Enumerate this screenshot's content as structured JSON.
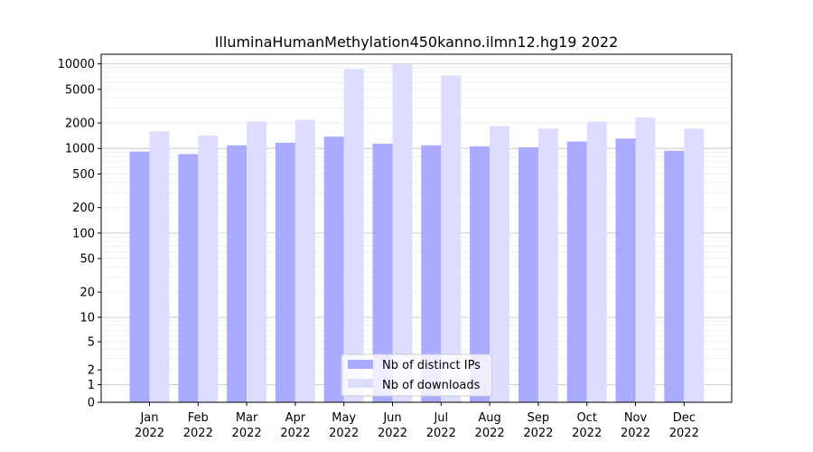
{
  "chart_data": {
    "type": "bar",
    "title": "IlluminaHumanMethylation450kanno.ilmn12.hg19 2022",
    "xlabel": "",
    "ylabel": "",
    "y_scale": "symlog",
    "ylim": [
      0,
      13000
    ],
    "y_ticks": [
      0,
      1,
      2,
      5,
      10,
      20,
      50,
      100,
      200,
      500,
      1000,
      2000,
      5000,
      10000
    ],
    "y_tick_labels": [
      "0",
      "1",
      "2",
      "5",
      "10",
      "20",
      "50",
      "100",
      "200",
      "500",
      "1000",
      "2000",
      "5000",
      "10000"
    ],
    "categories": [
      "Jan",
      "Feb",
      "Mar",
      "Apr",
      "May",
      "Jun",
      "Jul",
      "Aug",
      "Sep",
      "Oct",
      "Nov",
      "Dec"
    ],
    "category_year": "2022",
    "series": [
      {
        "name": "Nb of distinct IPs",
        "color": "#aaaaff",
        "values": [
          920,
          860,
          1090,
          1170,
          1380,
          1140,
          1090,
          1060,
          1030,
          1210,
          1310,
          940
        ]
      },
      {
        "name": "Nb of downloads",
        "color": "#ddddff",
        "values": [
          1600,
          1420,
          2080,
          2180,
          8700,
          9900,
          7300,
          1840,
          1720,
          2080,
          2320,
          1720
        ]
      }
    ],
    "grid": true,
    "legend_position": "lower center"
  }
}
